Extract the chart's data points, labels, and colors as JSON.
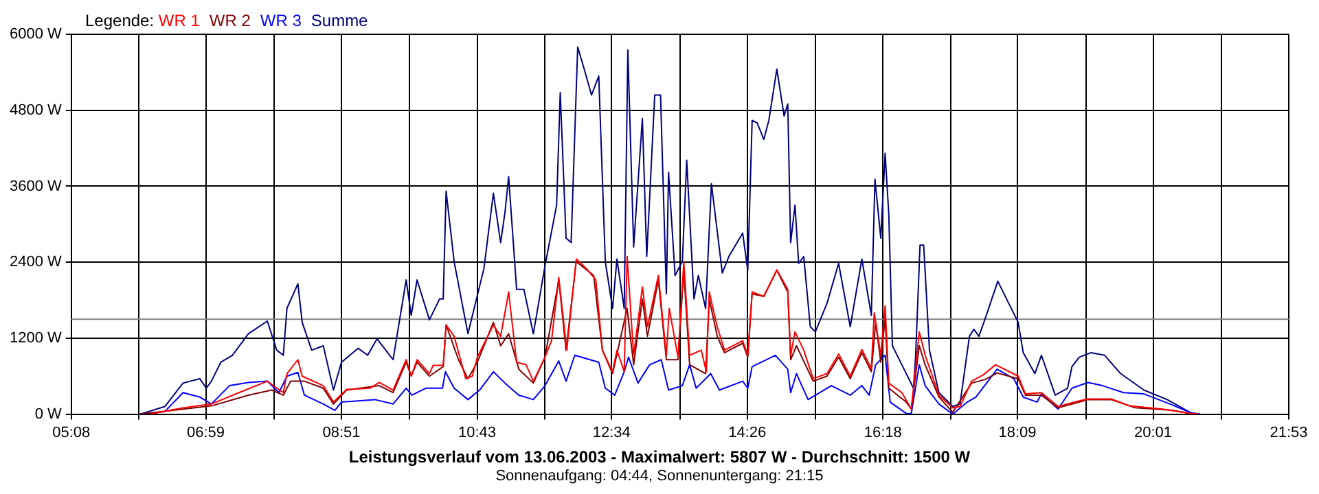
{
  "chart_data": {
    "type": "line",
    "title": "Leistungsverlauf vom 13.06.2003 - Maximalwert: 5807 W - Durchschnitt: 1500 W",
    "subtitle": "Sonnenaufgang: 04:44, Sonnenuntergang: 21:15",
    "legend_title": "Legende:",
    "legend": "top left",
    "grid": true,
    "marker": "none",
    "line_style": "solid",
    "xlim": [
      5.1333,
      21.8833
    ],
    "xticks": [
      {
        "value": 5.1333,
        "label": "05:08"
      },
      {
        "value": 6.0639,
        "label": null
      },
      {
        "value": 6.9833,
        "label": "06:59"
      },
      {
        "value": 7.925,
        "label": null
      },
      {
        "value": 8.85,
        "label": "08:51"
      },
      {
        "value": 9.7861,
        "label": null
      },
      {
        "value": 10.7167,
        "label": "10:43"
      },
      {
        "value": 11.6472,
        "label": null
      },
      {
        "value": 12.5667,
        "label": "12:34"
      },
      {
        "value": 13.5083,
        "label": null
      },
      {
        "value": 14.4333,
        "label": "14:26"
      },
      {
        "value": 15.3694,
        "label": null
      },
      {
        "value": 16.3,
        "label": "16:18"
      },
      {
        "value": 17.2306,
        "label": null
      },
      {
        "value": 18.15,
        "label": "18:09"
      },
      {
        "value": 19.0917,
        "label": null
      },
      {
        "value": 20.0167,
        "label": "20:01"
      },
      {
        "value": 20.9528,
        "label": null
      },
      {
        "value": 21.8833,
        "label": "21:53"
      }
    ],
    "ylim": [
      0,
      6000
    ],
    "yticks": [
      {
        "value": 0,
        "label": "0 W"
      },
      {
        "value": 1200,
        "label": "1200 W"
      },
      {
        "value": 2400,
        "label": "2400 W"
      },
      {
        "value": 3600,
        "label": "3600 W"
      },
      {
        "value": 4800,
        "label": "4800 W"
      },
      {
        "value": 6000,
        "label": "6000 W"
      }
    ],
    "ref_lines": [
      {
        "axis": "y",
        "value": 1500,
        "color": "#808080"
      }
    ],
    "series": [
      {
        "name": "WR 1",
        "color": "#ff0000",
        "x": [
          6.22,
          6.67,
          7.06,
          7.44,
          7.83,
          7.96,
          8.05,
          8.1,
          8.25,
          8.31,
          8.6,
          8.74,
          8.92,
          9.24,
          9.37,
          9.56,
          9.74,
          9.81,
          9.89,
          10.06,
          10.11,
          10.25,
          10.29,
          10.4,
          10.56,
          10.65,
          10.72,
          10.94,
          11.04,
          11.15,
          11.26,
          11.39,
          11.49,
          11.65,
          11.74,
          11.84,
          11.95,
          12.08,
          12.22,
          12.35,
          12.44,
          12.58,
          12.64,
          12.74,
          12.78,
          12.87,
          12.99,
          13.06,
          13.21,
          13.32,
          13.36,
          13.48,
          13.56,
          13.64,
          13.8,
          13.87,
          13.91,
          14.02,
          14.12,
          14.37,
          14.44,
          14.5,
          14.66,
          14.84,
          14.99,
          15.03,
          15.09,
          15.21,
          15.34,
          15.53,
          15.69,
          15.85,
          16.01,
          16.14,
          16.18,
          16.27,
          16.33,
          16.38,
          16.56,
          16.69,
          16.8,
          16.88,
          17.07,
          17.26,
          17.36,
          17.52,
          17.68,
          17.85,
          18.16,
          18.26,
          18.48,
          18.71,
          19.0,
          19.12,
          19.44,
          19.7,
          20.15,
          20.54,
          20.63
        ],
        "values": [
          0,
          100,
          160,
          340,
          520,
          410,
          340,
          640,
          860,
          600,
          450,
          190,
          390,
          410,
          500,
          380,
          860,
          600,
          860,
          640,
          770,
          770,
          1410,
          1230,
          560,
          600,
          900,
          1410,
          1230,
          1930,
          820,
          780,
          520,
          900,
          1160,
          2160,
          1010,
          2450,
          2300,
          2120,
          1010,
          670,
          1010,
          670,
          2490,
          930,
          2010,
          1380,
          2190,
          930,
          1670,
          900,
          2410,
          930,
          1010,
          670,
          1930,
          1380,
          1010,
          1160,
          930,
          1930,
          1860,
          2280,
          1970,
          930,
          1300,
          1010,
          560,
          640,
          950,
          600,
          1020,
          720,
          1600,
          930,
          1710,
          490,
          340,
          80,
          1300,
          930,
          300,
          100,
          120,
          520,
          620,
          780,
          600,
          320,
          340,
          120,
          210,
          240,
          240,
          130,
          80,
          10,
          0
        ]
      },
      {
        "name": "WR 2",
        "color": "#800000",
        "x": [
          6.08,
          6.67,
          7.06,
          7.57,
          7.89,
          8.05,
          8.15,
          8.34,
          8.6,
          8.74,
          8.92,
          9.37,
          9.56,
          9.74,
          9.81,
          9.89,
          10.06,
          10.25,
          10.29,
          10.46,
          10.59,
          10.72,
          10.94,
          11.04,
          11.15,
          11.29,
          11.49,
          11.65,
          11.84,
          11.94,
          12.08,
          12.32,
          12.44,
          12.58,
          12.78,
          12.87,
          12.99,
          13.06,
          13.21,
          13.32,
          13.48,
          13.56,
          13.64,
          13.86,
          13.91,
          14.02,
          14.12,
          14.37,
          14.44,
          14.5,
          14.66,
          14.84,
          14.99,
          15.03,
          15.11,
          15.34,
          15.53,
          15.69,
          15.85,
          16.01,
          16.14,
          16.2,
          16.27,
          16.33,
          16.38,
          16.62,
          16.69,
          16.8,
          16.88,
          17.07,
          17.26,
          17.52,
          17.71,
          17.87,
          18.16,
          18.26,
          18.48,
          18.71,
          19.0,
          19.12,
          19.44,
          19.77,
          20.28,
          20.54,
          20.63
        ],
        "values": [
          0,
          80,
          130,
          300,
          380,
          300,
          520,
          520,
          410,
          160,
          380,
          450,
          340,
          820,
          600,
          820,
          600,
          750,
          1410,
          860,
          560,
          820,
          1450,
          1080,
          1270,
          710,
          490,
          900,
          2120,
          1010,
          2410,
          2190,
          1010,
          640,
          1670,
          780,
          1820,
          1230,
          2120,
          860,
          860,
          2270,
          780,
          640,
          1820,
          1230,
          970,
          1120,
          900,
          1900,
          1860,
          2270,
          1930,
          860,
          1080,
          520,
          600,
          900,
          560,
          970,
          670,
          1450,
          820,
          1520,
          410,
          190,
          80,
          1080,
          780,
          270,
          30,
          490,
          550,
          650,
          560,
          300,
          300,
          100,
          190,
          230,
          230,
          100,
          60,
          10,
          0
        ]
      },
      {
        "name": "WR 3",
        "color": "#0000ff",
        "x": [
          6.08,
          6.42,
          6.67,
          6.9,
          7.06,
          7.31,
          7.57,
          7.83,
          7.99,
          8.1,
          8.25,
          8.34,
          8.6,
          8.76,
          8.85,
          9.31,
          9.56,
          9.74,
          9.82,
          10.01,
          10.24,
          10.28,
          10.4,
          10.59,
          10.75,
          10.94,
          11.1,
          11.29,
          11.49,
          11.65,
          11.84,
          11.94,
          12.06,
          12.39,
          12.48,
          12.61,
          12.74,
          12.8,
          12.93,
          13.09,
          13.25,
          13.35,
          13.54,
          13.64,
          13.73,
          13.93,
          14.05,
          14.37,
          14.44,
          14.5,
          14.82,
          14.99,
          15.03,
          15.11,
          15.27,
          15.59,
          15.85,
          16.01,
          16.11,
          16.2,
          16.33,
          16.4,
          16.62,
          16.69,
          16.8,
          16.88,
          17.07,
          17.26,
          17.46,
          17.58,
          17.87,
          18.1,
          18.23,
          18.42,
          18.48,
          18.71,
          18.9,
          19.12,
          19.32,
          19.61,
          19.89,
          20.25,
          20.54,
          20.63
        ],
        "values": [
          0,
          40,
          340,
          270,
          160,
          450,
          500,
          520,
          340,
          600,
          660,
          300,
          160,
          60,
          190,
          230,
          160,
          410,
          300,
          410,
          410,
          670,
          410,
          230,
          380,
          670,
          490,
          300,
          230,
          450,
          840,
          520,
          930,
          820,
          410,
          300,
          670,
          900,
          490,
          780,
          860,
          380,
          450,
          780,
          410,
          640,
          380,
          520,
          410,
          750,
          930,
          710,
          340,
          640,
          230,
          450,
          300,
          450,
          300,
          780,
          930,
          190,
          10,
          10,
          780,
          450,
          160,
          0,
          190,
          270,
          710,
          560,
          270,
          190,
          320,
          80,
          410,
          500,
          450,
          340,
          320,
          160,
          20,
          0
        ]
      },
      {
        "name": "Summe",
        "color": "#000080",
        "x": [
          6.08,
          6.42,
          6.67,
          6.9,
          6.99,
          7.06,
          7.19,
          7.35,
          7.57,
          7.83,
          7.96,
          8.05,
          8.1,
          8.25,
          8.31,
          8.44,
          8.6,
          8.74,
          8.85,
          9.08,
          9.21,
          9.34,
          9.56,
          9.74,
          9.81,
          9.89,
          10.06,
          10.2,
          10.25,
          10.29,
          10.4,
          10.59,
          10.81,
          10.94,
          11.04,
          11.1,
          11.15,
          11.26,
          11.36,
          11.49,
          11.65,
          11.81,
          11.86,
          11.94,
          12.01,
          12.1,
          12.19,
          12.29,
          12.39,
          12.48,
          12.58,
          12.64,
          12.74,
          12.79,
          12.87,
          12.99,
          13.05,
          13.16,
          13.24,
          13.32,
          13.35,
          13.44,
          13.54,
          13.6,
          13.7,
          13.76,
          13.86,
          13.94,
          14.09,
          14.18,
          14.37,
          14.44,
          14.5,
          14.57,
          14.66,
          14.73,
          14.84,
          14.94,
          14.99,
          15.03,
          15.09,
          15.14,
          15.21,
          15.3,
          15.37,
          15.53,
          15.69,
          15.85,
          16.01,
          16.14,
          16.19,
          16.27,
          16.33,
          16.38,
          16.43,
          16.56,
          16.72,
          16.75,
          16.81,
          16.86,
          16.94,
          17.07,
          17.26,
          17.36,
          17.49,
          17.55,
          17.62,
          17.71,
          17.88,
          18.0,
          18.16,
          18.23,
          18.39,
          18.48,
          18.67,
          18.84,
          18.9,
          19.0,
          19.16,
          19.35,
          19.57,
          19.89,
          20.21,
          20.54,
          20.66
        ],
        "values": [
          0,
          120,
          490,
          560,
          410,
          520,
          820,
          930,
          1270,
          1470,
          1010,
          930,
          1670,
          2060,
          1450,
          1010,
          1080,
          380,
          820,
          1040,
          930,
          1190,
          860,
          2120,
          1560,
          2120,
          1490,
          1820,
          1820,
          3520,
          2410,
          1270,
          2300,
          3490,
          2710,
          3190,
          3750,
          1970,
          1970,
          1270,
          2340,
          3300,
          5080,
          2780,
          2710,
          5800,
          5450,
          5040,
          5340,
          2410,
          1670,
          2450,
          1670,
          5750,
          2640,
          4670,
          2490,
          5040,
          5040,
          1900,
          3820,
          2190,
          2410,
          4010,
          1820,
          2190,
          1670,
          3640,
          2230,
          2490,
          2860,
          2270,
          4640,
          4600,
          4340,
          4640,
          5450,
          4710,
          4900,
          2710,
          3300,
          2380,
          2490,
          1380,
          1300,
          1750,
          2380,
          1380,
          2450,
          1560,
          3710,
          2780,
          4120,
          3160,
          1080,
          780,
          410,
          930,
          2670,
          2670,
          1010,
          340,
          120,
          160,
          1230,
          1340,
          1230,
          1520,
          2100,
          1820,
          1450,
          970,
          640,
          930,
          300,
          410,
          750,
          900,
          970,
          930,
          640,
          380,
          230,
          20,
          0
        ]
      }
    ]
  }
}
